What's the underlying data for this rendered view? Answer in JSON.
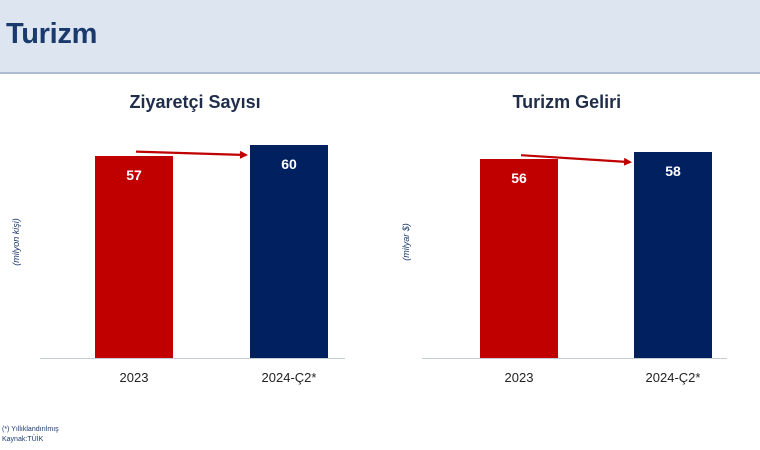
{
  "header": {
    "title": "Turizm"
  },
  "chart_data": [
    {
      "type": "bar",
      "title": "Ziyaretçi Sayısı",
      "ylabel": "(milyon kişi)",
      "categories": [
        "2023",
        "2024-Ç2*"
      ],
      "values": [
        57,
        60
      ],
      "value_labels": [
        "57",
        "60"
      ],
      "bar_colors": [
        "#c00000",
        "#002060"
      ],
      "ylim": [
        0,
        60
      ],
      "grid": false,
      "legend": "none",
      "annotation": "arrow from 2023 bar to 2024-Ç2* bar",
      "arrow_color": "#c00000"
    },
    {
      "type": "bar",
      "title": "Turizm Geliri",
      "ylabel": "(milyar $)",
      "categories": [
        "2023",
        "2024-Ç2*"
      ],
      "values": [
        56,
        58
      ],
      "value_labels": [
        "56",
        "58"
      ],
      "bar_colors": [
        "#c00000",
        "#002060"
      ],
      "ylim": [
        0,
        60
      ],
      "grid": false,
      "legend": "none",
      "annotation": "arrow from 2023 bar to 2024-Ç2* bar",
      "arrow_color": "#c00000"
    }
  ],
  "footer": {
    "note": "(*) Yıllıklandırılmış",
    "source": "Kaynak:TÜİK"
  }
}
